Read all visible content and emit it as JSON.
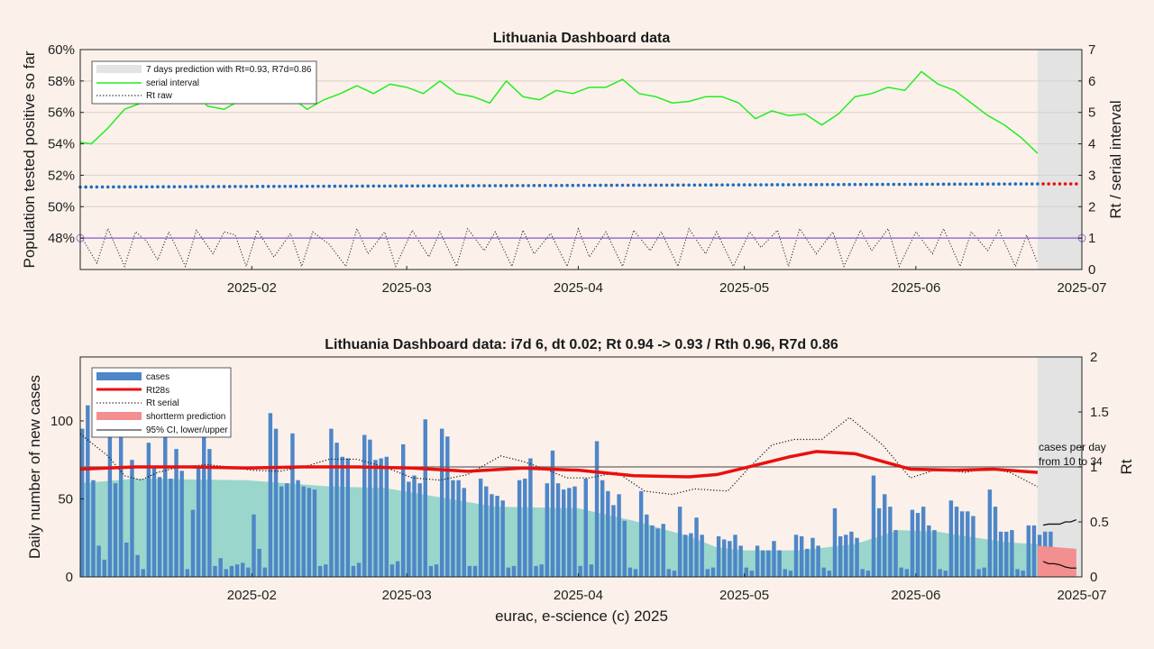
{
  "footer": "eurac, e-science (c) 2025",
  "colors": {
    "background": "#fbf1ea",
    "serial": "#22ee22",
    "blue_dots": "#1f6fc0",
    "pred_dots": "#e81010",
    "purple": "#9b6fd4",
    "bars": "#4e86c8",
    "area": "#8fd3c8",
    "rt28": "#e81010",
    "prediction_fill": "#f48f8f",
    "shade": "#e3e3e3"
  },
  "chart_data": [
    {
      "type": "line",
      "title": "Lithuania Dashboard data",
      "ylabel_left": "Population tested positive so far",
      "ylabel_right": "Rt / serial interval",
      "x_ticks": [
        "2025-02",
        "2025-03",
        "2025-04",
        "2025-05",
        "2025-06",
        "2025-07"
      ],
      "x_tick_days": [
        31,
        59,
        90,
        120,
        151,
        181
      ],
      "x_range_days": [
        0,
        181
      ],
      "prediction_start_day": 173,
      "y_left_ticks": [
        "48%",
        "50%",
        "52%",
        "54%",
        "56%",
        "58%",
        "60%"
      ],
      "y_left_range": [
        46,
        60
      ],
      "y_right_ticks": [
        "0",
        "1",
        "2",
        "3",
        "4",
        "5",
        "6",
        "7"
      ],
      "y_right_range": [
        0,
        7
      ],
      "grid": true,
      "legend_position": "top-left",
      "legend": [
        "7 days prediction with Rt=0.93, R7d=0.86",
        "serial interval",
        "Rt raw"
      ],
      "series": [
        {
          "name": "serial interval",
          "axis": "right",
          "x": [
            0,
            2,
            5,
            8,
            11,
            14,
            17,
            20,
            23,
            26,
            29,
            32,
            35,
            38,
            41,
            44,
            47,
            50,
            53,
            56,
            59,
            62,
            65,
            68,
            71,
            74,
            77,
            80,
            83,
            86,
            89,
            92,
            95,
            98,
            101,
            104,
            107,
            110,
            113,
            116,
            119,
            122,
            125,
            128,
            131,
            134,
            137,
            140,
            143,
            146,
            149,
            152,
            155,
            158,
            161,
            164,
            167,
            170,
            173
          ],
          "y": [
            4.05,
            4.0,
            4.5,
            5.1,
            5.3,
            5.7,
            6.0,
            5.8,
            5.2,
            5.1,
            5.4,
            5.8,
            5.5,
            5.5,
            5.1,
            5.4,
            5.6,
            5.85,
            5.6,
            5.9,
            5.8,
            5.6,
            6.0,
            5.6,
            5.5,
            5.3,
            6.0,
            5.5,
            5.4,
            5.7,
            5.6,
            5.8,
            5.8,
            6.05,
            5.6,
            5.5,
            5.3,
            5.35,
            5.5,
            5.5,
            5.3,
            4.8,
            5.05,
            4.9,
            4.95,
            4.6,
            4.95,
            5.5,
            5.6,
            5.8,
            5.7,
            6.3,
            5.9,
            5.7,
            5.3,
            4.9,
            4.6,
            4.2,
            3.7
          ]
        },
        {
          "name": "population tested positive",
          "axis": "left",
          "x": [
            0,
            173
          ],
          "y": [
            51.25,
            51.45
          ]
        },
        {
          "name": "7 days prediction",
          "axis": "left",
          "x": [
            173,
            180
          ],
          "y": [
            51.45,
            51.45
          ]
        },
        {
          "name": "Rt raw",
          "axis": "right",
          "x": [
            0,
            3,
            5,
            8,
            10,
            12,
            14,
            16,
            19,
            21,
            24,
            26,
            28,
            30,
            32,
            35,
            38,
            40,
            42,
            45,
            48,
            50,
            52,
            55,
            57,
            60,
            63,
            65,
            68,
            70,
            73,
            75,
            78,
            80,
            82,
            85,
            88,
            90,
            92,
            95,
            98,
            100,
            103,
            105,
            108,
            110,
            113,
            115,
            118,
            121,
            123,
            126,
            128,
            130,
            133,
            136,
            138,
            141,
            143,
            146,
            148,
            151,
            154,
            156,
            159,
            161,
            164,
            166,
            169,
            171,
            173
          ],
          "y": [
            1.1,
            0.2,
            1.3,
            0.1,
            1.2,
            0.9,
            0.3,
            1.2,
            0.1,
            1.25,
            0.5,
            1.2,
            1.1,
            0.1,
            1.25,
            0.4,
            1.15,
            0.1,
            1.2,
            0.8,
            0.1,
            1.3,
            0.5,
            1.2,
            0.1,
            1.25,
            0.4,
            1.2,
            0.1,
            1.3,
            0.6,
            1.2,
            0.1,
            1.25,
            0.5,
            1.15,
            0.1,
            1.3,
            0.4,
            1.2,
            0.1,
            1.25,
            0.6,
            1.2,
            0.1,
            1.3,
            0.5,
            1.2,
            0.1,
            1.2,
            0.7,
            1.25,
            0.1,
            1.3,
            0.5,
            1.2,
            0.1,
            1.25,
            0.6,
            1.3,
            0.1,
            1.2,
            0.5,
            1.3,
            0.1,
            1.2,
            0.6,
            1.25,
            0.1,
            1.1,
            0.2
          ]
        },
        {
          "name": "Rt = 1",
          "axis": "right",
          "x": [
            0,
            181
          ],
          "y": [
            1,
            1
          ]
        }
      ]
    },
    {
      "type": "bar",
      "title": "Lithuania Dashboard data: i7d 6, dt 0.02; Rt 0.94 -> 0.93 / Rth 0.96, R7d 0.86",
      "ylabel_left": "Daily number of new cases",
      "ylabel_right": "Rt",
      "xlabel": "eurac, e-science (c) 2025",
      "x_ticks": [
        "2025-02",
        "2025-03",
        "2025-04",
        "2025-05",
        "2025-06",
        "2025-07"
      ],
      "x_tick_days": [
        31,
        59,
        90,
        120,
        151,
        181
      ],
      "x_range_days": [
        0,
        181
      ],
      "prediction_start_day": 173,
      "y_left_ticks": [
        "0",
        "50",
        "100"
      ],
      "y_left_range": [
        0,
        141
      ],
      "y_right_ticks": [
        "0",
        "0.5",
        "1",
        "1.5",
        "2"
      ],
      "y_right_range": [
        0,
        2
      ],
      "legend_position": "top-left",
      "legend": [
        "cases",
        "Rt28s",
        "Rt serial",
        "shortterm prediction",
        "95% CI, lower/upper"
      ],
      "annotation": [
        "cases per day",
        "from 10 to 34"
      ],
      "series": [
        {
          "name": "cases",
          "axis": "left",
          "start_day": 0,
          "values": [
            95,
            110,
            62,
            20,
            11,
            98,
            60,
            90,
            22,
            75,
            14,
            5,
            86,
            70,
            64,
            90,
            63,
            82,
            68,
            5,
            43,
            70,
            92,
            82,
            7,
            12,
            5,
            7,
            8,
            9,
            6,
            40,
            18,
            6,
            105,
            95,
            58,
            60,
            92,
            62,
            58,
            57,
            56,
            7,
            8,
            95,
            86,
            77,
            76,
            7,
            9,
            91,
            88,
            75,
            76,
            77,
            8,
            10,
            85,
            61,
            65,
            60,
            101,
            7,
            8,
            95,
            90,
            62,
            62,
            57,
            7,
            7,
            63,
            58,
            53,
            52,
            49,
            6,
            7,
            62,
            63,
            76,
            7,
            8,
            60,
            81,
            60,
            56,
            57,
            58,
            7,
            63,
            8,
            87,
            62,
            55,
            46,
            53,
            36,
            6,
            5,
            55,
            40,
            33,
            31,
            34,
            5,
            4,
            45,
            27,
            28,
            38,
            27,
            5,
            6,
            26,
            24,
            23,
            27,
            20,
            6,
            4,
            20,
            17,
            17,
            23,
            17,
            5,
            4,
            27,
            26,
            18,
            25,
            20,
            6,
            4,
            44,
            26,
            27,
            29,
            25,
            5,
            4,
            65,
            44,
            53,
            45,
            30,
            6,
            5,
            43,
            41,
            45,
            33,
            30,
            5,
            4,
            49,
            45,
            42,
            42,
            39,
            5,
            6,
            56,
            45,
            29,
            29,
            30,
            5,
            4,
            33,
            33,
            27,
            29,
            29,
            5,
            4
          ]
        },
        {
          "name": "smoothed area",
          "axis": "left",
          "x": [
            0,
            10,
            30,
            45,
            55,
            60,
            75,
            90,
            100,
            110,
            115,
            120,
            130,
            140,
            148,
            155,
            160,
            168,
            173
          ],
          "y": [
            60,
            63,
            62,
            58,
            57,
            54,
            45,
            44,
            36,
            26,
            19,
            17,
            17,
            21,
            30,
            29,
            26,
            22,
            21
          ]
        },
        {
          "name": "Rt28s",
          "axis": "right",
          "x": [
            0,
            10,
            20,
            30,
            40,
            50,
            60,
            70,
            80,
            90,
            100,
            110,
            115,
            120,
            128,
            133,
            140,
            145,
            150,
            158,
            165,
            173
          ],
          "y": [
            0.98,
            1.0,
            1.0,
            0.99,
            1.0,
            1.0,
            0.99,
            0.96,
            0.99,
            0.97,
            0.92,
            0.91,
            0.93,
            0.99,
            1.09,
            1.14,
            1.12,
            1.05,
            0.98,
            0.97,
            0.98,
            0.95
          ]
        },
        {
          "name": "Rt serial",
          "axis": "right",
          "x": [
            0,
            5,
            8,
            11,
            14,
            18,
            23,
            27,
            31,
            36,
            41,
            45,
            50,
            55,
            60,
            65,
            70,
            76,
            80,
            84,
            88,
            92,
            97,
            102,
            107,
            111,
            117,
            121,
            125,
            129,
            134,
            139,
            145,
            150,
            155,
            160,
            164,
            168,
            173
          ],
          "y": [
            1.3,
            1.1,
            0.92,
            0.88,
            0.95,
            1.0,
            1.02,
            1.0,
            0.97,
            0.96,
            1.01,
            1.07,
            1.07,
            1.0,
            0.9,
            0.88,
            0.93,
            1.1,
            1.05,
            0.98,
            0.9,
            0.9,
            0.95,
            0.78,
            0.75,
            0.8,
            0.78,
            1.0,
            1.2,
            1.25,
            1.25,
            1.45,
            1.2,
            0.9,
            0.98,
            0.95,
            0.99,
            0.95,
            0.82
          ]
        },
        {
          "name": "shortterm prediction",
          "axis": "left",
          "x": [
            173,
            180
          ],
          "upper": [
            20,
            18
          ],
          "lower": [
            8,
            6
          ]
        },
        {
          "name": "95% CI, lower/upper",
          "axis": "right",
          "x": [
            174,
            175,
            176,
            177,
            178,
            179,
            180
          ],
          "upper": [
            0.47,
            0.48,
            0.48,
            0.48,
            0.5,
            0.5,
            0.52
          ],
          "lower": [
            0.14,
            0.12,
            0.12,
            0.11,
            0.09,
            0.08,
            0.08
          ]
        }
      ]
    }
  ]
}
